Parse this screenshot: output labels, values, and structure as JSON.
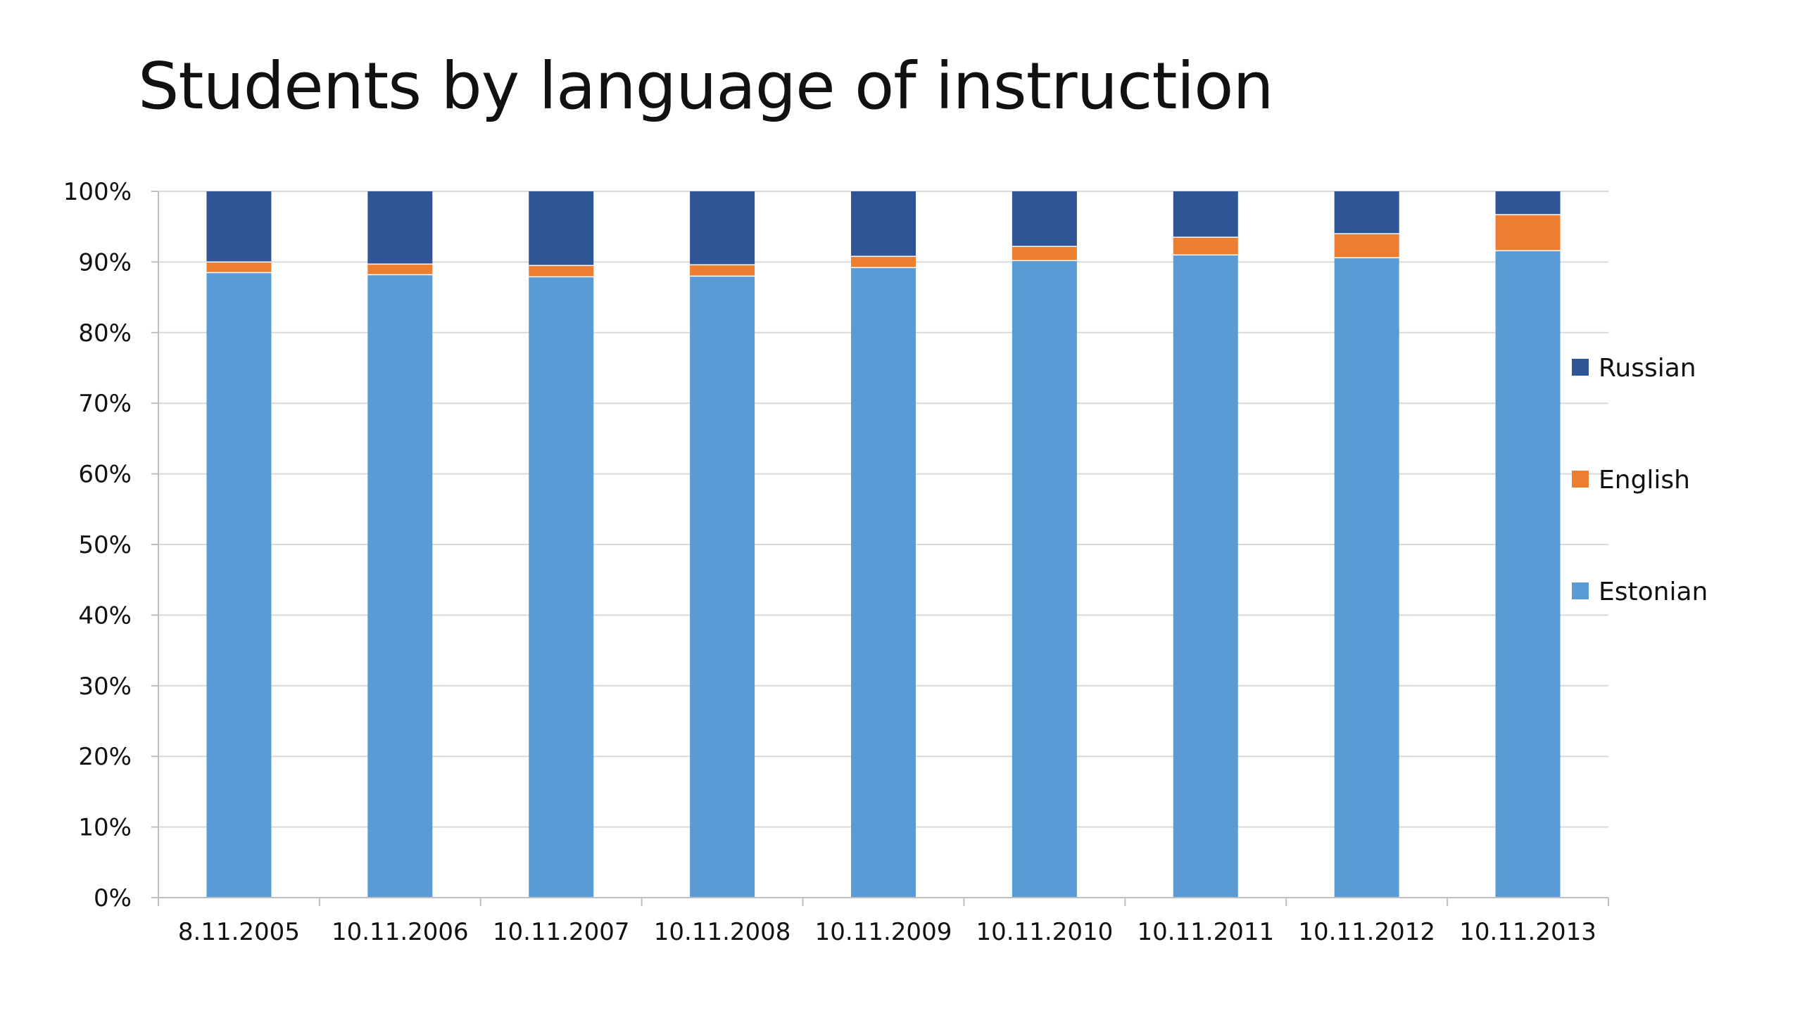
{
  "chart_data": {
    "type": "bar",
    "stacked": true,
    "percent_stacked": true,
    "title": "Students by language of instruction",
    "categories": [
      "8.11.2005",
      "10.11.2006",
      "10.11.2007",
      "10.11.2008",
      "10.11.2009",
      "10.11.2010",
      "10.11.2011",
      "10.11.2012",
      "10.11.2013"
    ],
    "series": [
      {
        "name": "Estonian",
        "color": "#5B9BD5",
        "values": [
          88.5,
          88.2,
          87.9,
          88.0,
          89.2,
          90.2,
          91.0,
          90.6,
          91.6
        ]
      },
      {
        "name": "English",
        "color": "#ED7D31",
        "values": [
          1.5,
          1.5,
          1.6,
          1.6,
          1.6,
          2.0,
          2.5,
          3.4,
          5.1
        ]
      },
      {
        "name": "Russian",
        "color": "#2F5597",
        "values": [
          10.0,
          10.3,
          10.5,
          10.4,
          9.2,
          7.8,
          6.5,
          6.0,
          3.3
        ]
      }
    ],
    "ylim": [
      0,
      100
    ],
    "yticks": [
      "0%",
      "10%",
      "20%",
      "30%",
      "40%",
      "50%",
      "60%",
      "70%",
      "80%",
      "90%",
      "100%"
    ],
    "grid": true,
    "legend_position": "right",
    "legend_order": [
      "Russian",
      "English",
      "Estonian"
    ],
    "axis_color": "#BFBFBF",
    "grid_color": "#D9D9D9"
  }
}
